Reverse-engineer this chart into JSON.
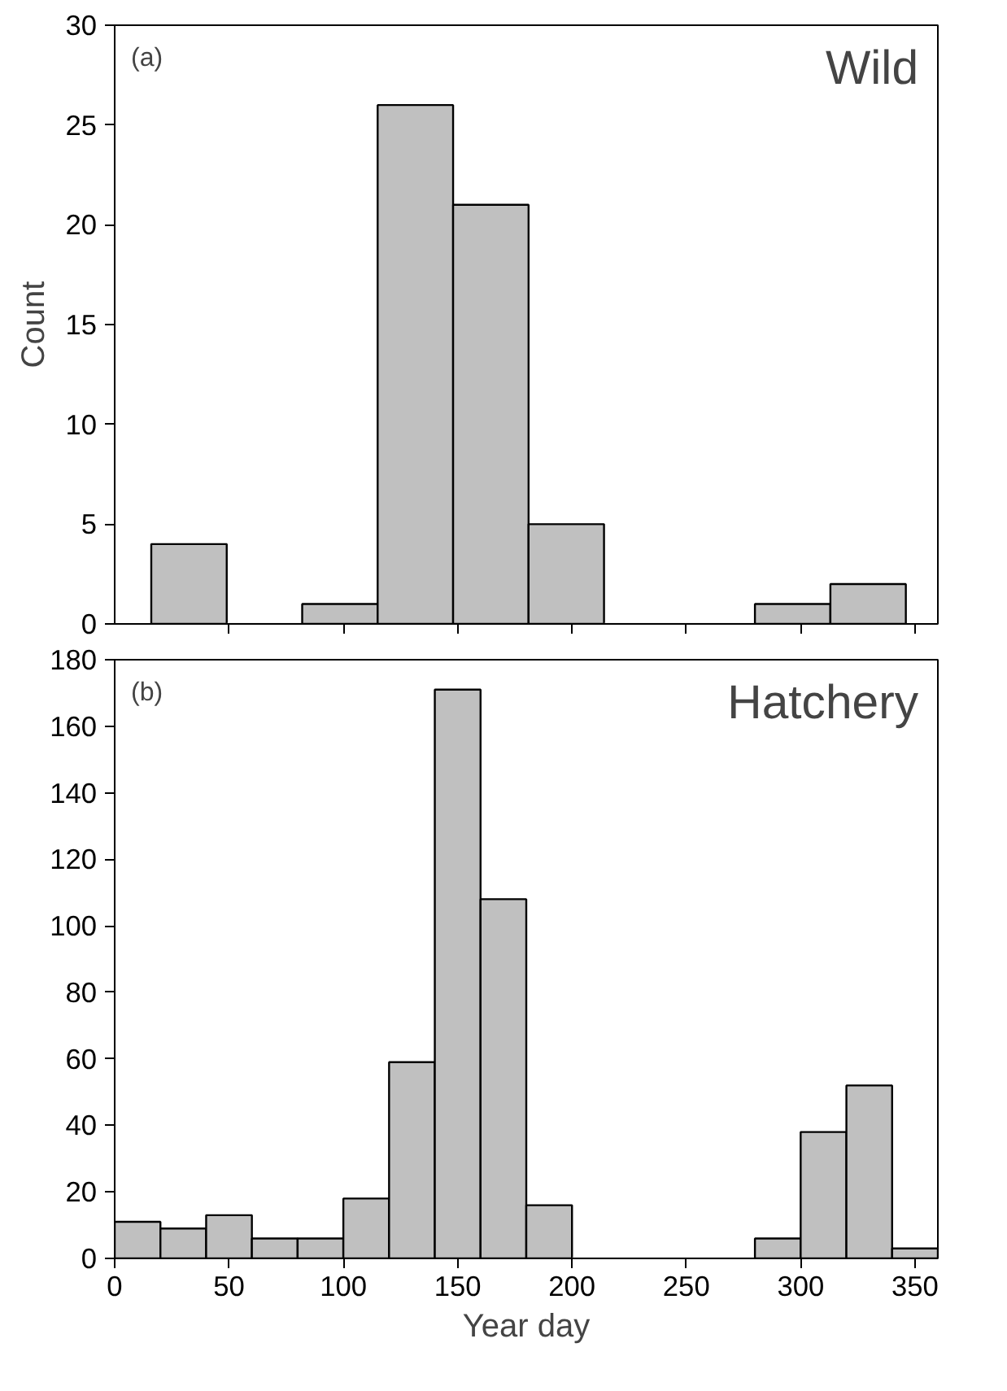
{
  "chart_data": [
    {
      "type": "histogram",
      "title": "Wild",
      "annotations": [
        "(a)"
      ],
      "ylabel": "Count",
      "bins": [
        16,
        49,
        82,
        115,
        148,
        181,
        214,
        247,
        280,
        313,
        346
      ],
      "values": [
        4,
        0,
        1,
        26,
        21,
        5,
        0,
        0,
        1,
        2
      ],
      "color": "#c0c0c0",
      "xlim": [
        0,
        360
      ],
      "xticks": [
        50,
        100,
        150,
        200,
        250,
        300,
        350
      ],
      "ylim": [
        0,
        30
      ],
      "yticks": [
        0,
        5,
        10,
        15,
        20,
        25,
        30
      ],
      "tick_labels": "y",
      "grid": false
    },
    {
      "type": "histogram",
      "title": "Hatchery",
      "annotations": [
        "(b)"
      ],
      "xlabel": "Year day",
      "bins": [
        0,
        20,
        40,
        60,
        80,
        100,
        120,
        140,
        160,
        180,
        200,
        220,
        240,
        260,
        280,
        300,
        320,
        340,
        360
      ],
      "values": [
        11,
        9,
        13,
        6,
        6,
        18,
        59,
        171,
        108,
        16,
        0,
        0,
        0,
        0,
        6,
        38,
        52,
        3
      ],
      "color": "#c0c0c0",
      "xlim": [
        0,
        360
      ],
      "xticks": [
        0,
        50,
        100,
        150,
        200,
        250,
        300,
        350
      ],
      "ylim": [
        0,
        180
      ],
      "yticks": [
        0,
        20,
        40,
        60,
        80,
        100,
        120,
        140,
        160,
        180
      ],
      "grid": false
    }
  ]
}
